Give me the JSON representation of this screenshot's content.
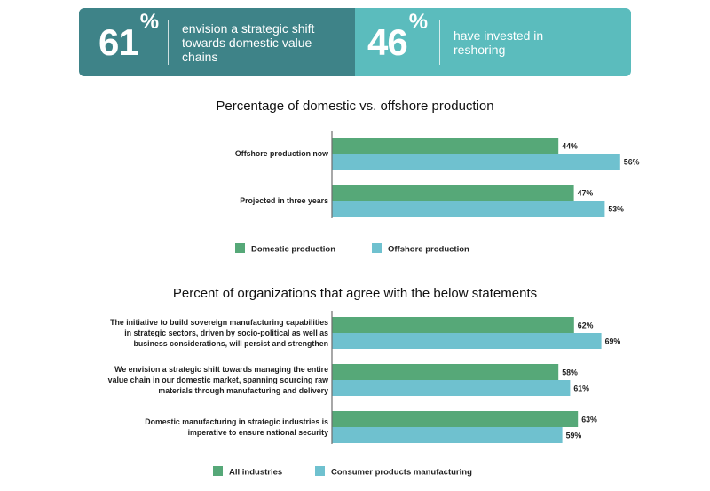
{
  "banner": {
    "stat1": {
      "value": "61",
      "symbol": "%",
      "text_lines": [
        "envision a strategic shift",
        "towards domestic value",
        "chains"
      ],
      "color": "#3e8388"
    },
    "stat2": {
      "value": "46",
      "symbol": "%",
      "text_lines": [
        "have invested in",
        "reshoring"
      ],
      "color": "#5bbcbd"
    }
  },
  "colors": {
    "green": "#56a878",
    "blue": "#6fc1cf"
  },
  "chart_data": [
    {
      "type": "bar",
      "orientation": "horizontal",
      "title": "Percentage of domestic vs. offshore production",
      "categories": [
        [
          "Offshore production now"
        ],
        [
          "Projected in three years"
        ]
      ],
      "series": [
        {
          "name": "Domestic production",
          "values": [
            44,
            47
          ],
          "labels": [
            "44%",
            "47%"
          ],
          "color": "#56a878"
        },
        {
          "name": "Offshore production",
          "values": [
            56,
            53
          ],
          "labels": [
            "56%",
            "53%"
          ],
          "color": "#6fc1cf"
        }
      ],
      "xlim": [
        0,
        100
      ],
      "grid": false,
      "legend": "bottom"
    },
    {
      "type": "bar",
      "orientation": "horizontal",
      "title": "Percent of organizations that agree with the below statements",
      "categories": [
        [
          "The initiative to build sovereign manufacturing capabilities",
          "in strategic sectors, driven by socio-political as well as",
          "business considerations, will persist and strengthen"
        ],
        [
          "We envision a strategic shift towards managing the entire",
          "value chain in our domestic market, spanning sourcing raw",
          "materials through manufacturing and delivery"
        ],
        [
          "Domestic manufacturing in strategic industries is",
          "imperative to ensure national security"
        ]
      ],
      "series": [
        {
          "name": "All industries",
          "values": [
            62,
            58,
            63
          ],
          "labels": [
            "62%",
            "58%",
            "63%"
          ],
          "color": "#56a878"
        },
        {
          "name": "Consumer products manufacturing",
          "values": [
            69,
            61,
            59
          ],
          "labels": [
            "69%",
            "61%",
            "59%"
          ],
          "color": "#6fc1cf"
        }
      ],
      "xlim": [
        0,
        100
      ],
      "grid": false,
      "legend": "bottom"
    }
  ]
}
